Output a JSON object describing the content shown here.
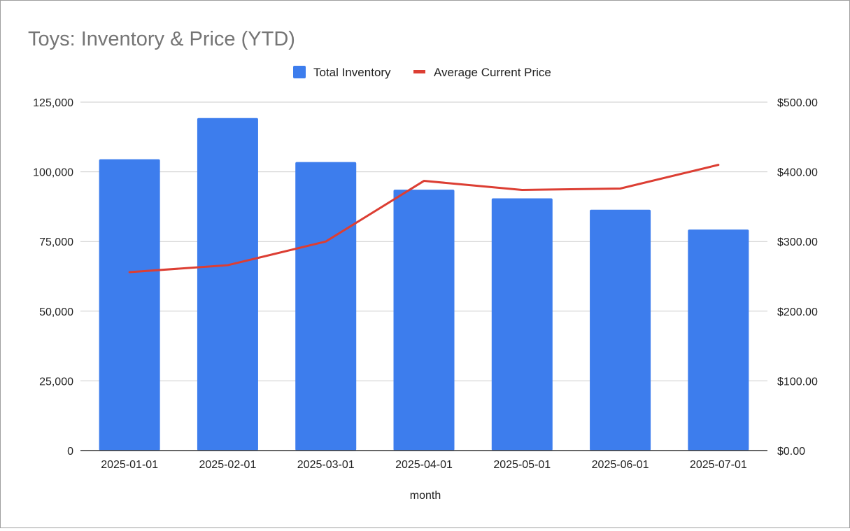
{
  "chart_data": {
    "type": "bar",
    "title": "Toys: Inventory & Price (YTD)",
    "xlabel": "month",
    "ylabel": "",
    "y2label": "",
    "categories": [
      "2025-01-01",
      "2025-02-01",
      "2025-03-01",
      "2025-04-01",
      "2025-05-01",
      "2025-06-01",
      "2025-07-01"
    ],
    "series": [
      {
        "name": "Total Inventory",
        "type": "bar",
        "axis": "left",
        "color": "#3d7ded",
        "values": [
          104500,
          119300,
          103500,
          93600,
          90500,
          86400,
          79300
        ]
      },
      {
        "name": "Average Current Price",
        "type": "line",
        "axis": "right",
        "color": "#dc3e33",
        "values": [
          256,
          266,
          300,
          387,
          374,
          376,
          410
        ]
      }
    ],
    "ylim": [
      0,
      125000
    ],
    "y2lim": [
      0,
      500
    ],
    "y_ticks": [
      "0",
      "25,000",
      "50,000",
      "75,000",
      "100,000",
      "125,000"
    ],
    "y2_ticks": [
      "$0.00",
      "$100.00",
      "$200.00",
      "$300.00",
      "$400.00",
      "$500.00"
    ],
    "grid": true,
    "legend_position": "top"
  }
}
